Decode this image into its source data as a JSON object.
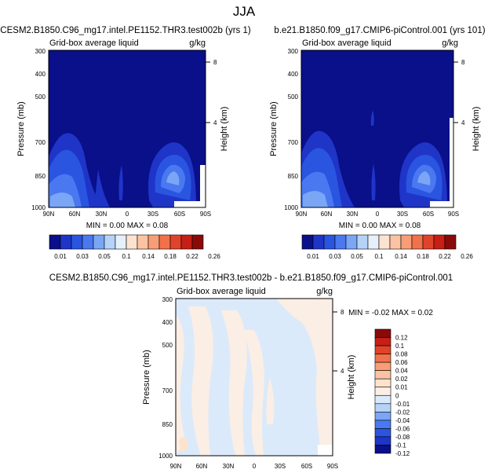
{
  "page_title": "JJA",
  "panels": [
    {
      "run_title": "CESM2.B1850.C96_mg17.intel.PE1152.THR3.test002b (yrs 1)",
      "left_label": "Grid-box average liquid",
      "right_label": "g/kg",
      "min_max": "MIN =   0.00   MAX =   0.08"
    },
    {
      "run_title": "b.e21.B1850.f09_g17.CMIP6-piControl.001 (yrs 101)",
      "left_label": "Grid-box average liquid",
      "right_label": "g/kg",
      "min_max": "MIN =   0.00   MAX =   0.08"
    },
    {
      "run_title": "CESM2.B1850.C96_mg17.intel.PE1152.THR3.test002b - b.e21.B1850.f09_g17.CMIP6-piControl.001",
      "left_label": "Grid-box average liquid",
      "right_label": "g/kg",
      "min_max": "MIN =  -0.02   MAX =   0.02"
    }
  ],
  "colorbar_top": {
    "colors": [
      "#0a0f8a",
      "#1f35c8",
      "#2a55e0",
      "#4a78f0",
      "#7aa6f5",
      "#b5d2f8",
      "#e6f0fb",
      "#fbe3cf",
      "#fbc3a3",
      "#f89d77",
      "#f1714b",
      "#e0432a",
      "#c51f16",
      "#8a0a0a"
    ],
    "labels": [
      "0.01",
      "0.03",
      "0.05",
      "0.1",
      "0.14",
      "0.18",
      "0.22",
      "0.26"
    ]
  },
  "colorbar_diff": {
    "colors": [
      "#8a0a0a",
      "#c51f16",
      "#e0432a",
      "#f1714b",
      "#f89d77",
      "#fbc3a3",
      "#fde3cb",
      "#fbeee4",
      "#dbeafb",
      "#b5d2f8",
      "#7aa6f5",
      "#4a78f0",
      "#2a55e0",
      "#1f35c8",
      "#0a0f8a"
    ],
    "labels": [
      "0.12",
      "0.1",
      "0.08",
      "0.06",
      "0.04",
      "0.02",
      "0.01",
      "0",
      "-0.01",
      "-0.02",
      "-0.04",
      "-0.06",
      "-0.08",
      "-0.1",
      "-0.12"
    ]
  },
  "chart_data": [
    {
      "type": "heatmap",
      "title": "CESM2.B1850.C96_mg17.intel.PE1152.THR3.test002b (yrs 1)",
      "xlabel": "",
      "ylabel": "Pressure (mb)",
      "ylabel_right": "Height (km)",
      "x_ticks": [
        "90N",
        "60N",
        "30N",
        "0",
        "30S",
        "60S",
        "90S"
      ],
      "y_ticks": [
        "300",
        "400",
        "500",
        "700",
        "850",
        "1000"
      ],
      "y_ticks_right": [
        "8",
        "4"
      ],
      "min": 0.0,
      "max": 0.08,
      "units": "g/kg"
    },
    {
      "type": "heatmap",
      "title": "b.e21.B1850.f09_g17.CMIP6-piControl.001 (yrs 101)",
      "xlabel": "",
      "ylabel": "Pressure (mb)",
      "ylabel_right": "Height (km)",
      "x_ticks": [
        "90N",
        "60N",
        "30N",
        "0",
        "30S",
        "60S",
        "90S"
      ],
      "y_ticks": [
        "300",
        "400",
        "500",
        "700",
        "850",
        "1000"
      ],
      "y_ticks_right": [
        "8",
        "4"
      ],
      "min": 0.0,
      "max": 0.08,
      "units": "g/kg"
    },
    {
      "type": "heatmap",
      "title": "CESM2.B1850.C96_mg17.intel.PE1152.THR3.test002b - b.e21.B1850.f09_g17.CMIP6-piControl.001",
      "xlabel": "",
      "ylabel": "Pressure (mb)",
      "ylabel_right": "Height (km)",
      "x_ticks": [
        "90N",
        "60N",
        "30N",
        "0",
        "30S",
        "60S",
        "90S"
      ],
      "y_ticks": [
        "300",
        "400",
        "500",
        "700",
        "850",
        "1000"
      ],
      "y_ticks_right": [
        "8",
        "4"
      ],
      "min": -0.02,
      "max": 0.02,
      "units": "g/kg"
    }
  ]
}
